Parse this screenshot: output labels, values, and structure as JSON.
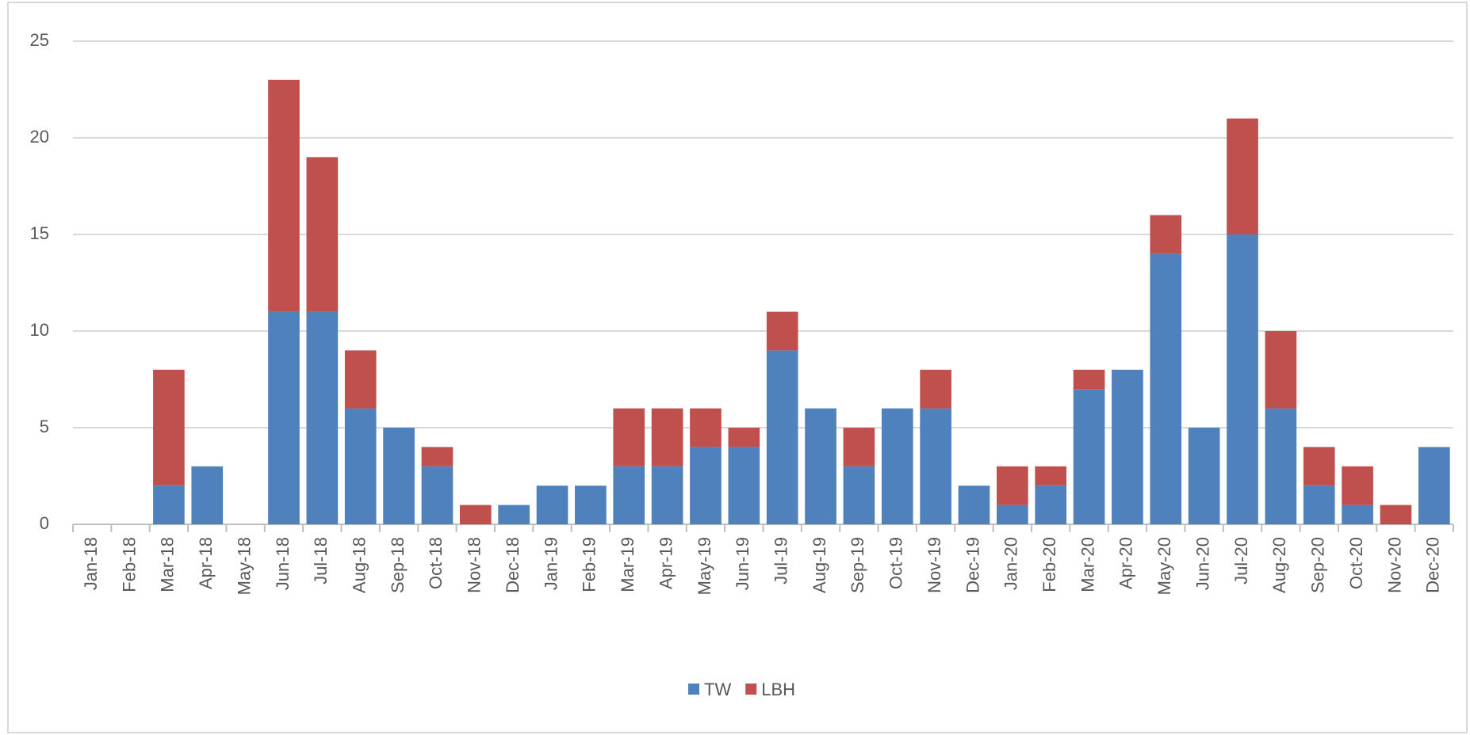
{
  "chart_data": {
    "type": "bar",
    "stacked": true,
    "categories": [
      "Jan-18",
      "Feb-18",
      "Mar-18",
      "Apr-18",
      "May-18",
      "Jun-18",
      "Jul-18",
      "Aug-18",
      "Sep-18",
      "Oct-18",
      "Nov-18",
      "Dec-18",
      "Jan-19",
      "Feb-19",
      "Mar-19",
      "Apr-19",
      "May-19",
      "Jun-19",
      "Jul-19",
      "Aug-19",
      "Sep-19",
      "Oct-19",
      "Nov-19",
      "Dec-19",
      "Jan-20",
      "Feb-20",
      "Mar-20",
      "Apr-20",
      "May-20",
      "Jun-20",
      "Jul-20",
      "Aug-20",
      "Sep-20",
      "Oct-20",
      "Nov-20",
      "Dec-20"
    ],
    "series": [
      {
        "name": "TW",
        "color": "#4f81bd",
        "values": [
          0,
          0,
          2,
          3,
          0,
          11,
          11,
          6,
          5,
          3,
          0,
          1,
          2,
          2,
          3,
          3,
          4,
          4,
          9,
          6,
          3,
          6,
          6,
          2,
          1,
          2,
          7,
          8,
          14,
          5,
          15,
          6,
          2,
          1,
          0,
          4
        ]
      },
      {
        "name": "LBH",
        "color": "#c0504d",
        "values": [
          0,
          0,
          6,
          0,
          0,
          12,
          8,
          3,
          0,
          1,
          1,
          0,
          0,
          0,
          3,
          3,
          2,
          1,
          2,
          0,
          2,
          0,
          2,
          0,
          2,
          1,
          1,
          0,
          2,
          0,
          6,
          4,
          2,
          2,
          1,
          0
        ]
      }
    ],
    "ylim": [
      0,
      25
    ],
    "yticks": [
      0,
      5,
      10,
      15,
      20,
      25
    ],
    "grid": true,
    "legend": "bottom"
  }
}
